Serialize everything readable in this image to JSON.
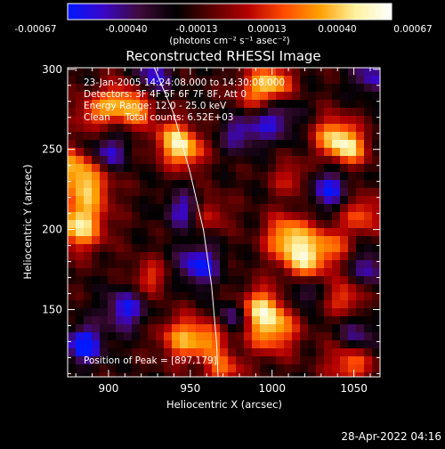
{
  "colorbar": {
    "ticks": [
      "-0.00067",
      "-0.00040",
      "-0.00013",
      "0.00013",
      "0.00040",
      "0.00067"
    ],
    "unit_label": "(photons cm⁻² s⁻¹ asec⁻²)",
    "colors": [
      "#0018ff",
      "#3a06c8",
      "#3f0a3a",
      "#000000",
      "#5a0000",
      "#b40000",
      "#ff4a00",
      "#ff9f00",
      "#fff2a0",
      "#ffffff"
    ]
  },
  "chart_data": {
    "type": "heatmap",
    "title": "Reconstructed RHESSI Image",
    "xlabel": "Heliocentric X (arcsec)",
    "ylabel": "Heliocentric Y (arcsec)",
    "xlim": [
      875,
      1066
    ],
    "ylim": [
      108,
      301
    ],
    "x_ticks": [
      900,
      950,
      1000,
      1050
    ],
    "y_ticks": [
      150,
      200,
      250,
      300
    ],
    "value_range": [
      -0.00067,
      0.00067
    ],
    "grid": false,
    "annotations": [
      "23-Jan-2005 14:24:08.000 to 14:30:08.000",
      "Detectors: 3F 4F 5F 6F 7F 8F, Att 0",
      "Energy Range: 12.0 - 25.0 keV",
      "Clean     Total counts: 6.52E+03"
    ],
    "peak_label": "Position of Peak = [897,179]",
    "limb_arc": [
      [
        928,
        301
      ],
      [
        940,
        272
      ],
      [
        950,
        235
      ],
      [
        958,
        200
      ],
      [
        963,
        165
      ],
      [
        966,
        130
      ],
      [
        967,
        108
      ]
    ],
    "hotspots": [
      [
        882,
        203,
        0.00066,
        11
      ],
      [
        888,
        228,
        0.0005,
        10
      ],
      [
        876,
        240,
        0.00045,
        9
      ],
      [
        1010,
        195,
        0.0006,
        10
      ],
      [
        1020,
        180,
        0.0005,
        9
      ],
      [
        1000,
        138,
        0.00055,
        11
      ],
      [
        993,
        152,
        0.00045,
        9
      ],
      [
        945,
        132,
        0.00048,
        10
      ],
      [
        962,
        132,
        0.0004,
        8
      ],
      [
        1038,
        258,
        0.00055,
        9
      ],
      [
        1048,
        250,
        0.00045,
        8
      ],
      [
        992,
        285,
        0.00048,
        10
      ],
      [
        1002,
        292,
        0.0004,
        8
      ],
      [
        906,
        280,
        0.00044,
        9
      ],
      [
        918,
        275,
        0.00038,
        8
      ],
      [
        940,
        256,
        0.0005,
        9
      ],
      [
        948,
        248,
        0.0004,
        8
      ],
      [
        1055,
        210,
        0.0004,
        9
      ],
      [
        1048,
        118,
        0.0005,
        10
      ],
      [
        925,
        170,
        0.00033,
        8
      ],
      [
        1035,
        190,
        0.00038,
        9
      ],
      [
        962,
        210,
        0.0003,
        8
      ],
      [
        890,
        272,
        0.00035,
        8
      ],
      [
        1045,
        157,
        0.00038,
        8
      ],
      [
        1012,
        232,
        0.0003,
        8
      ],
      [
        970,
        112,
        0.00042,
        8
      ]
    ],
    "coldspots": [
      [
        885,
        128,
        -0.0006,
        8
      ],
      [
        910,
        150,
        -0.00045,
        9
      ],
      [
        955,
        178,
        -0.0005,
        9
      ],
      [
        946,
        212,
        -0.0004,
        8
      ],
      [
        1000,
        270,
        -0.00045,
        10
      ],
      [
        980,
        260,
        -0.00035,
        8
      ],
      [
        1035,
        225,
        -0.00045,
        9
      ],
      [
        1060,
        176,
        -0.00035,
        8
      ],
      [
        1052,
        132,
        -0.0004,
        9
      ],
      [
        900,
        248,
        -0.0004,
        8
      ],
      [
        927,
        295,
        -0.0004,
        8
      ],
      [
        1060,
        295,
        -0.00035,
        8
      ],
      [
        975,
        145,
        -0.00035,
        7
      ],
      [
        1018,
        160,
        -0.0003,
        7
      ]
    ]
  },
  "footer": {
    "timestamp": "28-Apr-2022 04:16"
  }
}
